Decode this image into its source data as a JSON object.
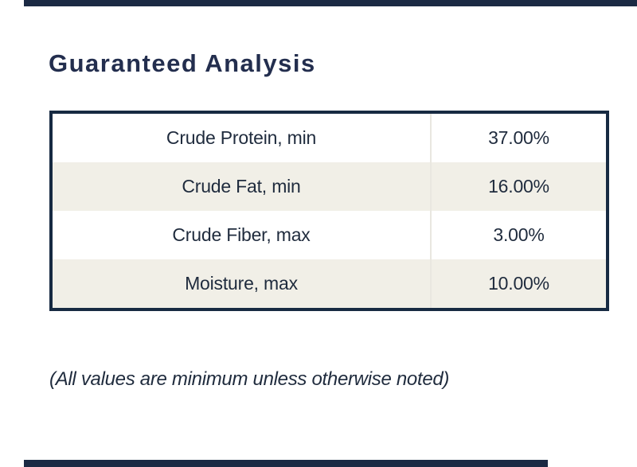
{
  "section": {
    "title": "Guaranteed Analysis",
    "note": "(All values are minimum unless otherwise noted)"
  },
  "table": {
    "rows": [
      {
        "label": "Crude Protein, min",
        "value": "37.00%"
      },
      {
        "label": "Crude Fat, min",
        "value": "16.00%"
      },
      {
        "label": "Crude Fiber, max",
        "value": "3.00%"
      },
      {
        "label": "Moisture, max",
        "value": "10.00%"
      }
    ]
  },
  "colors": {
    "dark_navy_border": "#172a42",
    "heading_navy": "#232e4e",
    "body_text_navy": "#1f2b3d",
    "row_alt_cream": "#f1efe7",
    "column_divider": "#e9e7e0",
    "edge_bar_navy": "#1b2a44"
  }
}
